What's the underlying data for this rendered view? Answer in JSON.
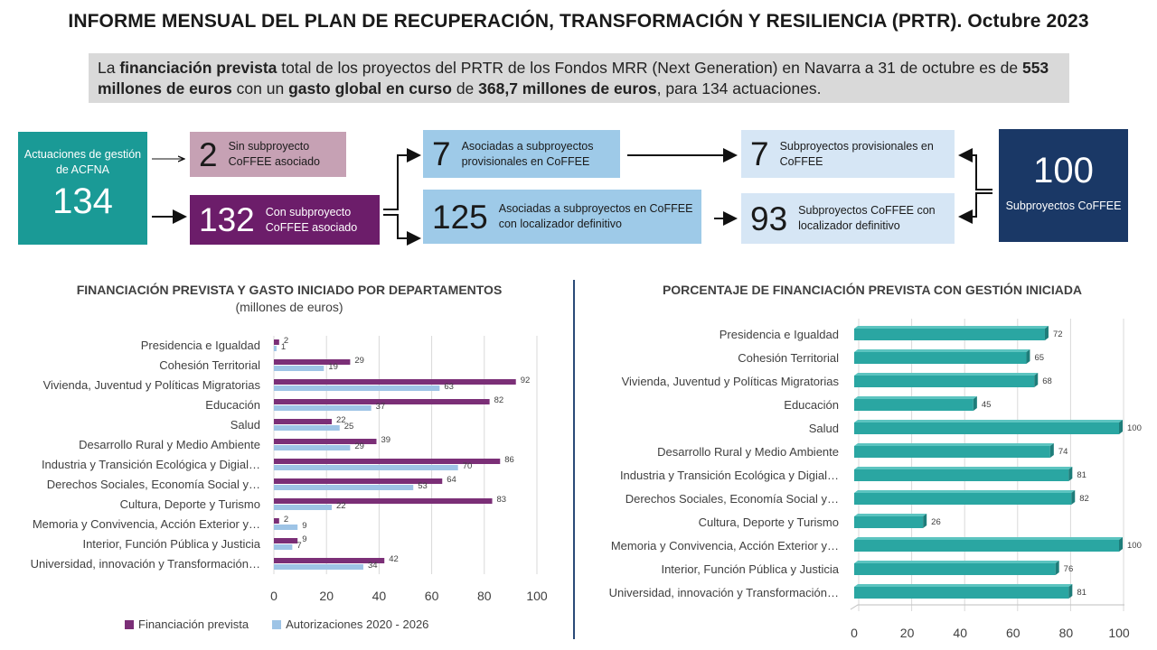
{
  "header": {
    "title": "INFORME MENSUAL DEL PLAN DE RECUPERACIÓN, TRANSFORMACIÓN Y RESILIENCIA (PRTR). Octubre 2023"
  },
  "summary": {
    "p1": "La ",
    "b1": "financiación prevista",
    "p2": " total de los proyectos del PRTR de los Fondos MRR (Next Generation) en Navarra a 31 de octubre es de ",
    "b2": "553 millones de euros",
    "p3": " con un ",
    "b3": "gasto global en curso",
    "p4": " de ",
    "b4": "368,7 millones de euros",
    "p5": ", para 134 actuaciones."
  },
  "flow": {
    "acfna": {
      "label": "Actuaciones de gestión de ACFNA",
      "value": "134"
    },
    "sin": {
      "value": "2",
      "label": "Sin subproyecto CoFFEE asociado"
    },
    "con": {
      "value": "132",
      "label": "Con subproyecto CoFFEE asociado"
    },
    "asoc_prov": {
      "value": "7",
      "label": "Asociadas a subproyectos provisionales en CoFFEE"
    },
    "asoc_def": {
      "value": "125",
      "label": "Asociadas a subproyectos en CoFFEE con localizador definitivo"
    },
    "sub_prov": {
      "value": "7",
      "label": "Subproyectos provisionales en CoFFEE"
    },
    "sub_def": {
      "value": "93",
      "label": "Subproyectos CoFFEE con localizador definitivo"
    },
    "subproyectos": {
      "value": "100",
      "label": "Subproyectos CoFFEE"
    }
  },
  "chart_data": [
    {
      "type": "bar",
      "orientation": "horizontal",
      "title": "FINANCIACIÓN PREVISTA Y GASTO INICIADO POR DEPARTAMENTOS",
      "subtitle": "(millones de euros)",
      "categories": [
        "Presidencia e Igualdad",
        "Cohesión Territorial",
        "Vivienda, Juventud y Políticas Migratorias",
        "Educación",
        "Salud",
        "Desarrollo Rural y Medio Ambiente",
        "Industria y Transición Ecológica y Digial…",
        "Derechos Sociales, Economía Social y…",
        "Cultura, Deporte y Turismo",
        "Memoria y Convivencia, Acción Exterior y…",
        "Interior, Función Pública y Justicia",
        "Universidad, innovación y Transformación…"
      ],
      "series": [
        {
          "name": "Financiación prevista",
          "color": "#7b2f77",
          "values": [
            2,
            29,
            92,
            82,
            22,
            39,
            86,
            64,
            83,
            2,
            9,
            42
          ]
        },
        {
          "name": "Autorizaciones 2020 - 2026",
          "color": "#9ec4e6",
          "values": [
            1,
            19,
            63,
            37,
            25,
            29,
            70,
            53,
            22,
            9,
            7,
            34
          ]
        }
      ],
      "xlim": [
        0,
        100
      ],
      "xticks": [
        0,
        20,
        40,
        60,
        80,
        100
      ],
      "grid": true,
      "legend": "bottom"
    },
    {
      "type": "bar",
      "orientation": "horizontal",
      "title": "PORCENTAJE DE FINANCIACIÓN PREVISTA CON GESTIÓN INICIADA",
      "categories": [
        "Presidencia e Igualdad",
        "Cohesión Territorial",
        "Vivienda, Juventud y Políticas Migratorias",
        "Educación",
        "Salud",
        "Desarrollo Rural y Medio Ambiente",
        "Industria y Transición Ecológica y Digial…",
        "Derechos Sociales, Economía Social y…",
        "Cultura, Deporte y Turismo",
        "Memoria y Convivencia, Acción Exterior y…",
        "Interior, Función Pública y Justicia",
        "Universidad, innovación y Transformación…"
      ],
      "series": [
        {
          "color": "#2aa6a2",
          "values": [
            72,
            65,
            68,
            45,
            100,
            74,
            81,
            82,
            26,
            100,
            76,
            81
          ]
        }
      ],
      "xlim": [
        0,
        100
      ],
      "xticks": [
        0,
        20,
        40,
        60,
        80,
        100
      ],
      "grid": true
    }
  ]
}
